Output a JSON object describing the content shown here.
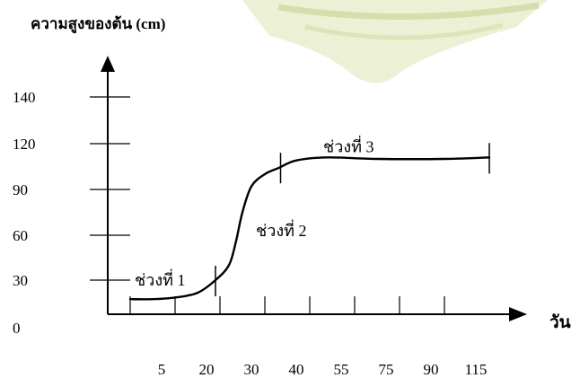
{
  "chart_data": {
    "type": "line",
    "title": "",
    "ylabel": "ความสูงของต้น (cm)",
    "xlabel": "วัน",
    "x_ticks": [
      "5",
      "20",
      "30",
      "40",
      "55",
      "75",
      "90",
      "115"
    ],
    "y_ticks": [
      "0",
      "30",
      "60",
      "90",
      "120",
      "140"
    ],
    "grid": false,
    "legend": "none",
    "series": [
      {
        "points": [
          {
            "x": 0,
            "y": 18
          },
          {
            "x": 0.5,
            "y": 18
          },
          {
            "x": 1,
            "y": 19
          },
          {
            "x": 1.5,
            "y": 22
          },
          {
            "x": 1.9,
            "y": 30
          },
          {
            "x": 2.2,
            "y": 40
          },
          {
            "x": 2.35,
            "y": 55
          },
          {
            "x": 2.5,
            "y": 75
          },
          {
            "x": 2.7,
            "y": 92
          },
          {
            "x": 3.0,
            "y": 100
          },
          {
            "x": 3.3,
            "y": 104
          },
          {
            "x": 3.7,
            "y": 109
          },
          {
            "x": 4.4,
            "y": 111
          },
          {
            "x": 5.5,
            "y": 110
          },
          {
            "x": 7.0,
            "y": 110
          },
          {
            "x": 8.0,
            "y": 111
          }
        ]
      }
    ],
    "annotations": [
      {
        "text": "ช่วงที่ 1",
        "x": 0.3,
        "y": 30
      },
      {
        "text": "ช่วงที่ 2",
        "x": 3.0,
        "y": 63
      },
      {
        "text": "ช่วงที่ 3",
        "x": 4.5,
        "y": 118
      }
    ],
    "phase_markers_x": [
      1.9,
      3.35,
      8.0
    ]
  },
  "colors": {
    "line": "#000000",
    "watermark": "#c9d59a"
  }
}
